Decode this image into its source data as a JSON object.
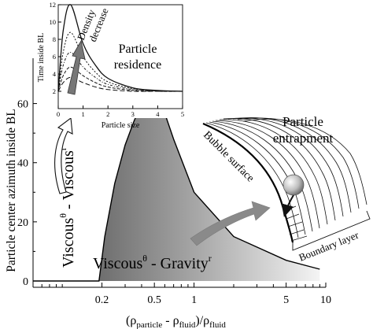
{
  "main_chart": {
    "ylabel": "Particle center azimuth inside BL",
    "xlabel_prefix": "(ρ",
    "xlabel_particle": "particle",
    "xlabel_minus": " - ρ",
    "xlabel_fluid": "fluid",
    "xlabel_close": ")/ρ",
    "xlabel_fluid2": "fluid",
    "y_ticks": [
      "0",
      "20",
      "40",
      "60"
    ],
    "x_ticks": [
      "0.2",
      "0.5",
      "1",
      "5",
      "10"
    ],
    "regime_upper": {
      "base1": "Viscous",
      "sup1": "θ",
      "sep": " - ",
      "base2": "Viscous",
      "sup2": "r"
    },
    "regime_lower": {
      "base1": "Viscous",
      "sup1": "θ",
      "sep": " - ",
      "base2": "Gravity",
      "sup2": "r"
    }
  },
  "inset": {
    "ylabel": "Time inside BL",
    "xlabel": "Particle size",
    "y_ticks": [
      "2",
      "4",
      "6",
      "8",
      "10",
      "12"
    ],
    "x_ticks": [
      "0",
      "1",
      "2",
      "3",
      "4",
      "5"
    ],
    "arrow_label_1": "Density",
    "arrow_label_2": "decrease",
    "title_1": "Particle",
    "title_2": "residence"
  },
  "schematic": {
    "title_1": "Particle",
    "title_2": "entrapment",
    "surface_label": "Bubble surface",
    "layer_label": "Boundary layer"
  },
  "chart_data": [
    {
      "type": "area",
      "x_scale": "log",
      "xlim": [
        0.06,
        10
      ],
      "ylim": [
        0,
        70
      ],
      "y_ticks": [
        0,
        20,
        40,
        60
      ],
      "x_ticks": [
        0.2,
        0.5,
        1,
        5,
        10
      ],
      "series": [
        {
          "x": [
            0.06,
            0.19,
            0.19,
            0.21,
            0.25,
            0.3,
            0.35,
            0.4,
            0.45,
            0.5,
            0.7,
            1.0,
            2.0,
            5.0,
            9.0
          ],
          "y": [
            0,
            0,
            0,
            15,
            33,
            46,
            54,
            60,
            64,
            67,
            48,
            30,
            15,
            7,
            4
          ]
        }
      ]
    },
    {
      "type": "line",
      "xlabel": "Particle size",
      "ylabel": "Time inside BL",
      "xlim": [
        0,
        5
      ],
      "ylim": [
        0,
        12
      ],
      "series": [
        {
          "x": [
            0,
            0.2,
            0.5,
            1,
            1.5,
            2,
            3,
            4,
            5
          ],
          "y": [
            2,
            9,
            12,
            7.5,
            5,
            3.5,
            2.4,
            2.1,
            2
          ]
        },
        {
          "x": [
            0,
            0.2,
            0.5,
            1,
            1.5,
            2,
            3,
            4,
            5
          ],
          "y": [
            2,
            6.5,
            8.8,
            6,
            4.2,
            3.1,
            2.3,
            2.05,
            2
          ]
        },
        {
          "x": [
            0,
            0.2,
            0.5,
            1,
            1.5,
            2,
            3,
            4,
            5
          ],
          "y": [
            2,
            5,
            6.5,
            4.8,
            3.6,
            2.8,
            2.2,
            2.05,
            2
          ]
        },
        {
          "x": [
            0,
            0.2,
            0.5,
            1,
            1.5,
            2,
            3,
            4,
            5
          ],
          "y": [
            2,
            3.8,
            4.8,
            3.8,
            3,
            2.5,
            2.1,
            2,
            2
          ]
        },
        {
          "x": [
            0,
            0.2,
            0.5,
            1,
            1.5,
            2,
            3,
            4,
            5
          ],
          "y": [
            2,
            3,
            3.6,
            3,
            2.5,
            2.2,
            2,
            2,
            2
          ]
        }
      ]
    }
  ]
}
